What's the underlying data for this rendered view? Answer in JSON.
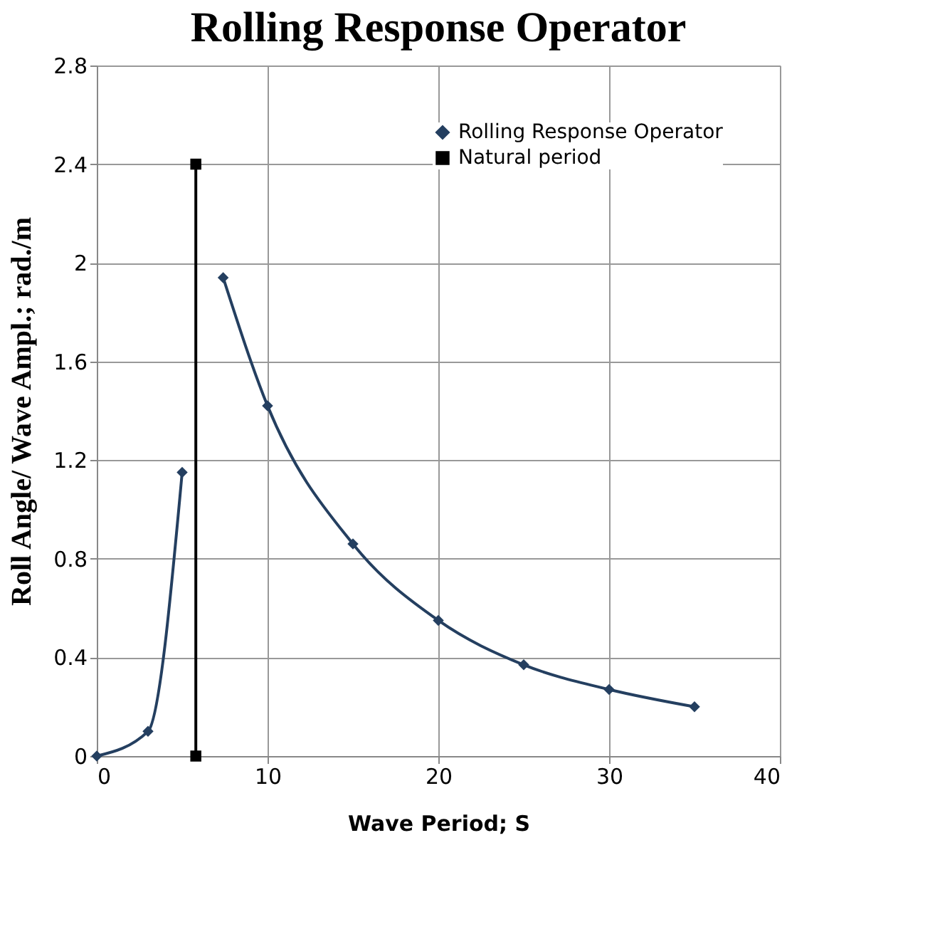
{
  "chart_data": {
    "type": "line",
    "title": "Rolling Response Operator",
    "xlabel": "Wave Period; S",
    "ylabel": "Roll Angle/ Wave Ampl.; rad./m",
    "xlim": [
      0,
      40
    ],
    "xticks": [
      0,
      10,
      20,
      30,
      40
    ],
    "ylim": [
      0,
      2.8
    ],
    "yticks": [
      0,
      0.4,
      0.8,
      1.2,
      1.6,
      2,
      2.4,
      2.8
    ],
    "grid": true,
    "legend": "top right",
    "series": [
      {
        "name": "Rolling Response Operator",
        "color": "#243f60",
        "marker": "diamond",
        "x": [
          0,
          3,
          5,
          6,
          7.4,
          10,
          15,
          20,
          25,
          30,
          35
        ],
        "values": [
          0,
          0.1,
          1.15,
          null,
          1.94,
          1.42,
          0.86,
          0.55,
          0.37,
          0.27,
          0.2
        ]
      },
      {
        "name": "Natural period",
        "color": "#000000",
        "marker": "square",
        "x": [
          5.8,
          5.8
        ],
        "values": [
          0,
          2.4
        ]
      }
    ]
  }
}
